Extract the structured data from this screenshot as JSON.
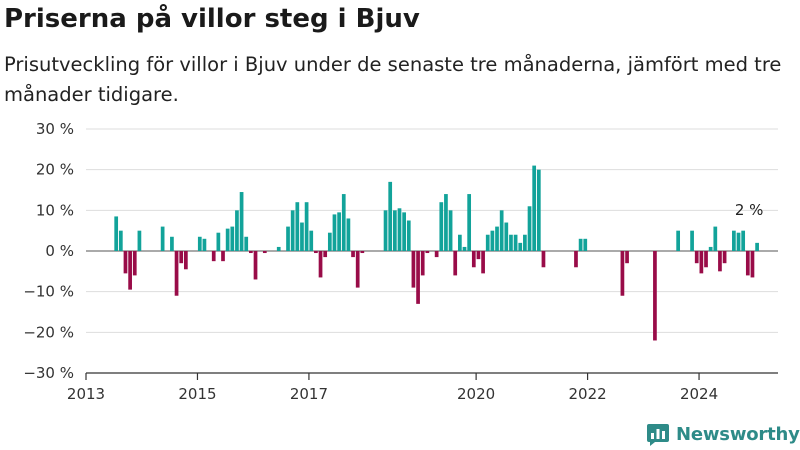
{
  "title": "Priserna på villor steg i Bjuv",
  "subtitle": "Prisutveckling för villor i Bjuv under de senaste tre månaderna, jämfört med tre månader tidigare.",
  "brand": {
    "name": "Newsworthy",
    "icon": "bar-chart-logo-icon"
  },
  "colors": {
    "positive": "#12a39a",
    "negative": "#990c48",
    "grid": "#dddddd",
    "axis": "#333333",
    "brand": "#2e8b88"
  },
  "chart_data": {
    "type": "bar",
    "title": "Priserna på villor steg i Bjuv",
    "xlabel": "",
    "ylabel": "",
    "ylim": [
      -30,
      30
    ],
    "xlim": [
      "2013-01",
      "2025-06"
    ],
    "yticks": [
      30,
      20,
      10,
      0,
      -10,
      -20,
      -30
    ],
    "ytick_labels": [
      "30 %",
      "20 %",
      "10 %",
      "0 %",
      "−10 %",
      "−20 %",
      "−30 %"
    ],
    "xticks": [
      "2013-01",
      "2015-01",
      "2017-01",
      "2020-01",
      "2022-01",
      "2024-01"
    ],
    "xtick_labels": [
      "2013",
      "2015",
      "2017",
      "2020",
      "2022",
      "2024"
    ],
    "grid": "horizontal",
    "annotation": {
      "text": "2 %",
      "x": "2024-10"
    },
    "series": [
      {
        "x": [
          "2013-07",
          "2013-08",
          "2013-09",
          "2013-10",
          "2013-11",
          "2013-12",
          "2014-05",
          "2014-07",
          "2014-08",
          "2014-09",
          "2014-10",
          "2015-01",
          "2015-02",
          "2015-04",
          "2015-05",
          "2015-06",
          "2015-07",
          "2015-08",
          "2015-09",
          "2015-10",
          "2015-11",
          "2015-12",
          "2016-01",
          "2016-03",
          "2016-06",
          "2016-08",
          "2016-09",
          "2016-10",
          "2016-11",
          "2016-12",
          "2017-01",
          "2017-02",
          "2017-03",
          "2017-04",
          "2017-05",
          "2017-06",
          "2017-07",
          "2017-08",
          "2017-09",
          "2017-10",
          "2017-11",
          "2017-12",
          "2018-05",
          "2018-06",
          "2018-07",
          "2018-08",
          "2018-09",
          "2018-10",
          "2018-11",
          "2018-12",
          "2019-01",
          "2019-02",
          "2019-04",
          "2019-05",
          "2019-06",
          "2019-07",
          "2019-08",
          "2019-09",
          "2019-10",
          "2019-11",
          "2019-12",
          "2020-01",
          "2020-02",
          "2020-03",
          "2020-04",
          "2020-05",
          "2020-06",
          "2020-07",
          "2020-08",
          "2020-09",
          "2020-10",
          "2020-11",
          "2020-12",
          "2021-01",
          "2021-02",
          "2021-03",
          "2021-10",
          "2021-11",
          "2021-12",
          "2022-08",
          "2022-09",
          "2023-03",
          "2023-08",
          "2023-11",
          "2023-12",
          "2024-01",
          "2024-02",
          "2024-03",
          "2024-04",
          "2024-05",
          "2024-06",
          "2024-08",
          "2024-09",
          "2024-10",
          "2024-11",
          "2024-12",
          "2025-01"
        ],
        "values": [
          8.5,
          5,
          -5.5,
          -9.5,
          -6,
          5,
          6,
          3.5,
          -11,
          -3,
          -4.5,
          3.5,
          3,
          -2.5,
          4.5,
          -2.5,
          5.5,
          6,
          10,
          14.5,
          3.5,
          -0.5,
          -7,
          -0.5,
          1,
          6,
          10,
          12,
          7,
          12,
          5,
          -0.5,
          -6.5,
          -1.5,
          4.5,
          9,
          9.5,
          14,
          8,
          -1.5,
          -9,
          -0.5,
          10,
          17,
          10,
          10.5,
          9.5,
          7.5,
          -9,
          -13,
          -6,
          -0.5,
          -1.5,
          12,
          14,
          10,
          -6,
          4,
          1,
          14,
          -4,
          -2,
          -5.5,
          4,
          5,
          6,
          10,
          7,
          4,
          4,
          2,
          4,
          11,
          21,
          20,
          -4,
          -4,
          3,
          3,
          -11,
          -3,
          -22,
          5,
          5,
          -3,
          -5.5,
          -4,
          1,
          6,
          -5,
          -3,
          5,
          4.5,
          5,
          -6,
          -6.5,
          2
        ]
      }
    ]
  }
}
